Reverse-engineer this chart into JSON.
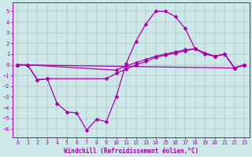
{
  "xlabel": "Windchill (Refroidissement éolien,°C)",
  "background_color": "#cce8e8",
  "line_color": "#aa00aa",
  "xlim": [
    -0.5,
    23.5
  ],
  "ylim": [
    -6.8,
    5.8
  ],
  "yticks": [
    -6,
    -5,
    -4,
    -3,
    -2,
    -1,
    0,
    1,
    2,
    3,
    4,
    5
  ],
  "xticks": [
    0,
    1,
    2,
    3,
    4,
    5,
    6,
    7,
    8,
    9,
    10,
    11,
    12,
    13,
    14,
    15,
    16,
    17,
    18,
    19,
    20,
    21,
    22,
    23
  ],
  "series": [
    {
      "x": [
        0,
        1,
        2,
        3,
        4,
        5,
        6,
        7,
        8,
        9,
        10,
        11,
        12,
        13,
        14,
        15,
        16,
        17,
        18,
        19,
        20,
        21,
        22,
        23
      ],
      "y": [
        0.0,
        0.0,
        -1.4,
        -1.3,
        -3.6,
        -4.4,
        -4.5,
        -6.1,
        -5.1,
        -5.3,
        -3.0,
        0.1,
        2.2,
        3.8,
        5.0,
        5.0,
        4.5,
        3.4,
        1.5,
        1.0,
        0.8,
        1.0,
        -0.3,
        0.0
      ]
    },
    {
      "x": [
        0,
        1,
        2,
        3,
        9,
        10,
        11,
        12,
        13,
        14,
        15,
        16,
        17,
        18,
        19,
        20,
        21,
        22,
        23
      ],
      "y": [
        0.0,
        0.0,
        -1.4,
        -1.3,
        -1.3,
        -0.8,
        -0.4,
        0.0,
        0.3,
        0.7,
        0.9,
        1.1,
        1.3,
        1.5,
        1.1,
        0.8,
        1.0,
        -0.3,
        0.0
      ]
    },
    {
      "x": [
        0,
        1,
        10,
        11,
        12,
        13,
        14,
        15,
        16,
        17,
        18,
        19,
        20,
        21,
        22,
        23
      ],
      "y": [
        0.0,
        0.0,
        -0.5,
        -0.1,
        0.2,
        0.5,
        0.8,
        1.0,
        1.2,
        1.4,
        1.5,
        1.1,
        0.8,
        1.0,
        -0.3,
        0.0
      ]
    },
    {
      "x": [
        0,
        22,
        23
      ],
      "y": [
        0.0,
        -0.3,
        0.0
      ]
    }
  ],
  "marker": "D",
  "markersize": 2.5,
  "linewidth": 0.9,
  "tick_fontsize": 4.8,
  "xlabel_fontsize": 5.5
}
